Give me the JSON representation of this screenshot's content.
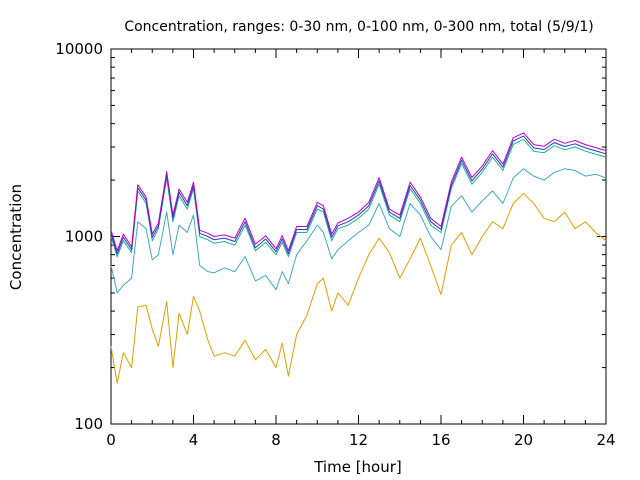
{
  "chart_data": {
    "type": "line",
    "title": "Concentration, ranges: 0-30 nm, 0-100 nm, 0-300 nm, total (5/9/1)",
    "xlabel": "Time [hour]",
    "ylabel": "Concentration",
    "xlim": [
      0,
      24
    ],
    "ylim": [
      100,
      10000
    ],
    "y_scale": "log",
    "grid": false,
    "legend": "none",
    "x_ticks": [
      0,
      4,
      8,
      12,
      16,
      20,
      24
    ],
    "y_ticks": [
      100,
      1000,
      10000
    ],
    "series": [
      {
        "color": "#e0a000",
        "x": [
          0,
          0.3,
          0.6,
          1.0,
          1.3,
          1.7,
          2.0,
          2.3,
          2.7,
          3.0,
          3.3,
          3.7,
          4.0,
          4.3,
          4.7,
          5.0,
          5.5,
          6.0,
          6.5,
          7.0,
          7.5,
          8.0,
          8.3,
          8.6,
          9.0,
          9.5,
          10.0,
          10.3,
          10.7,
          11.0,
          11.5,
          12.0,
          12.5,
          13.0,
          13.5,
          14.0,
          14.5,
          15.0,
          15.5,
          16.0,
          16.5,
          17.0,
          17.5,
          18.0,
          18.5,
          19.0,
          19.5,
          20.0,
          20.5,
          21.0,
          21.5,
          22.0,
          22.5,
          23.0,
          23.5,
          24.0
        ],
        "values": [
          260,
          165,
          240,
          200,
          420,
          430,
          320,
          260,
          450,
          200,
          390,
          300,
          480,
          400,
          280,
          230,
          240,
          230,
          280,
          220,
          250,
          200,
          270,
          180,
          300,
          380,
          560,
          600,
          400,
          500,
          430,
          600,
          800,
          980,
          820,
          600,
          760,
          980,
          700,
          490,
          900,
          1050,
          800,
          1000,
          1200,
          1100,
          1500,
          1700,
          1500,
          1250,
          1200,
          1350,
          1100,
          1200,
          1050,
          950
        ]
      },
      {
        "color": "#40a8c8",
        "x": [
          0,
          0.3,
          0.6,
          1.0,
          1.3,
          1.7,
          2.0,
          2.3,
          2.7,
          3.0,
          3.3,
          3.7,
          4.0,
          4.3,
          4.7,
          5.0,
          5.5,
          6.0,
          6.5,
          7.0,
          7.5,
          8.0,
          8.3,
          8.6,
          9.0,
          9.5,
          10.0,
          10.3,
          10.7,
          11.0,
          11.5,
          12.0,
          12.5,
          13.0,
          13.5,
          14.0,
          14.5,
          15.0,
          15.5,
          16.0,
          16.5,
          17.0,
          17.5,
          18.0,
          18.5,
          19.0,
          19.5,
          20.0,
          20.5,
          21.0,
          21.5,
          22.0,
          22.5,
          23.0,
          23.5,
          24.0
        ],
        "values": [
          700,
          500,
          550,
          600,
          1200,
          1100,
          750,
          800,
          1350,
          800,
          1150,
          1050,
          1300,
          700,
          650,
          640,
          680,
          650,
          780,
          580,
          620,
          520,
          650,
          560,
          800,
          950,
          1150,
          1050,
          760,
          850,
          950,
          1050,
          1150,
          1500,
          1100,
          1000,
          1500,
          1300,
          1000,
          850,
          1450,
          1650,
          1350,
          1550,
          1750,
          1500,
          2050,
          2300,
          2100,
          2000,
          2200,
          2300,
          2250,
          2100,
          2150,
          2050
        ]
      },
      {
        "color": "#20b090",
        "x": [
          0,
          0.3,
          0.6,
          1.0,
          1.3,
          1.7,
          2.0,
          2.3,
          2.7,
          3.0,
          3.3,
          3.7,
          4.0,
          4.3,
          4.7,
          5.0,
          5.5,
          6.0,
          6.5,
          7.0,
          7.5,
          8.0,
          8.3,
          8.6,
          9.0,
          9.5,
          10.0,
          10.3,
          10.7,
          11.0,
          11.5,
          12.0,
          12.5,
          13.0,
          13.5,
          14.0,
          14.5,
          15.0,
          15.5,
          16.0,
          16.5,
          17.0,
          17.5,
          18.0,
          18.5,
          19.0,
          19.5,
          20.0,
          20.5,
          21.0,
          21.5,
          22.0,
          22.5,
          23.0,
          23.5,
          24.0
        ],
        "values": [
          1000,
          780,
          950,
          820,
          1750,
          1500,
          950,
          1100,
          2050,
          1200,
          1650,
          1400,
          1800,
          1000,
          960,
          920,
          940,
          900,
          1150,
          840,
          930,
          800,
          930,
          780,
          1050,
          1050,
          1400,
          1350,
          950,
          1100,
          1150,
          1250,
          1400,
          1900,
          1300,
          1200,
          1800,
          1500,
          1150,
          1050,
          1800,
          2450,
          1900,
          2200,
          2650,
          2250,
          3100,
          3300,
          2850,
          2800,
          3050,
          2900,
          3000,
          2850,
          2750,
          2650
        ]
      },
      {
        "color": "#2040c0",
        "x": [
          0,
          0.3,
          0.6,
          1.0,
          1.3,
          1.7,
          2.0,
          2.3,
          2.7,
          3.0,
          3.3,
          3.7,
          4.0,
          4.3,
          4.7,
          5.0,
          5.5,
          6.0,
          6.5,
          7.0,
          7.5,
          8.0,
          8.3,
          8.6,
          9.0,
          9.5,
          10.0,
          10.3,
          10.7,
          11.0,
          11.5,
          12.0,
          12.5,
          13.0,
          13.5,
          14.0,
          14.5,
          15.0,
          15.5,
          16.0,
          16.5,
          17.0,
          17.5,
          18.0,
          18.5,
          19.0,
          19.5,
          20.0,
          20.5,
          21.0,
          21.5,
          22.0,
          22.5,
          23.0,
          23.5,
          24.0
        ],
        "values": [
          1040,
          810,
          990,
          850,
          1820,
          1560,
          990,
          1140,
          2140,
          1250,
          1720,
          1460,
          1870,
          1040,
          1000,
          960,
          980,
          940,
          1200,
          870,
          970,
          830,
          970,
          810,
          1090,
          1090,
          1460,
          1400,
          990,
          1140,
          1200,
          1300,
          1460,
          1980,
          1350,
          1250,
          1870,
          1560,
          1200,
          1090,
          1870,
          2550,
          1980,
          2290,
          2760,
          2340,
          3230,
          3430,
          2970,
          2910,
          3170,
          3020,
          3120,
          2970,
          2860,
          2760
        ]
      },
      {
        "color": "#c000c0",
        "x": [
          0,
          0.3,
          0.6,
          1.0,
          1.3,
          1.7,
          2.0,
          2.3,
          2.7,
          3.0,
          3.3,
          3.7,
          4.0,
          4.3,
          4.7,
          5.0,
          5.5,
          6.0,
          6.5,
          7.0,
          7.5,
          8.0,
          8.3,
          8.6,
          9.0,
          9.5,
          10.0,
          10.3,
          10.7,
          11.0,
          11.5,
          12.0,
          12.5,
          13.0,
          13.5,
          14.0,
          14.5,
          15.0,
          15.5,
          16.0,
          16.5,
          17.0,
          17.5,
          18.0,
          18.5,
          19.0,
          19.5,
          20.0,
          20.5,
          21.0,
          21.5,
          22.0,
          22.5,
          23.0,
          23.5,
          24.0
        ],
        "values": [
          1080,
          840,
          1030,
          880,
          1890,
          1620,
          1030,
          1180,
          2220,
          1300,
          1790,
          1520,
          1950,
          1080,
          1040,
          1000,
          1020,
          980,
          1250,
          910,
          1010,
          860,
          1010,
          840,
          1130,
          1130,
          1520,
          1460,
          1030,
          1180,
          1250,
          1350,
          1520,
          2060,
          1400,
          1300,
          1950,
          1620,
          1250,
          1130,
          1950,
          2650,
          2060,
          2380,
          2870,
          2430,
          3360,
          3570,
          3090,
          3030,
          3300,
          3140,
          3250,
          3090,
          2980,
          2870
        ]
      }
    ]
  }
}
